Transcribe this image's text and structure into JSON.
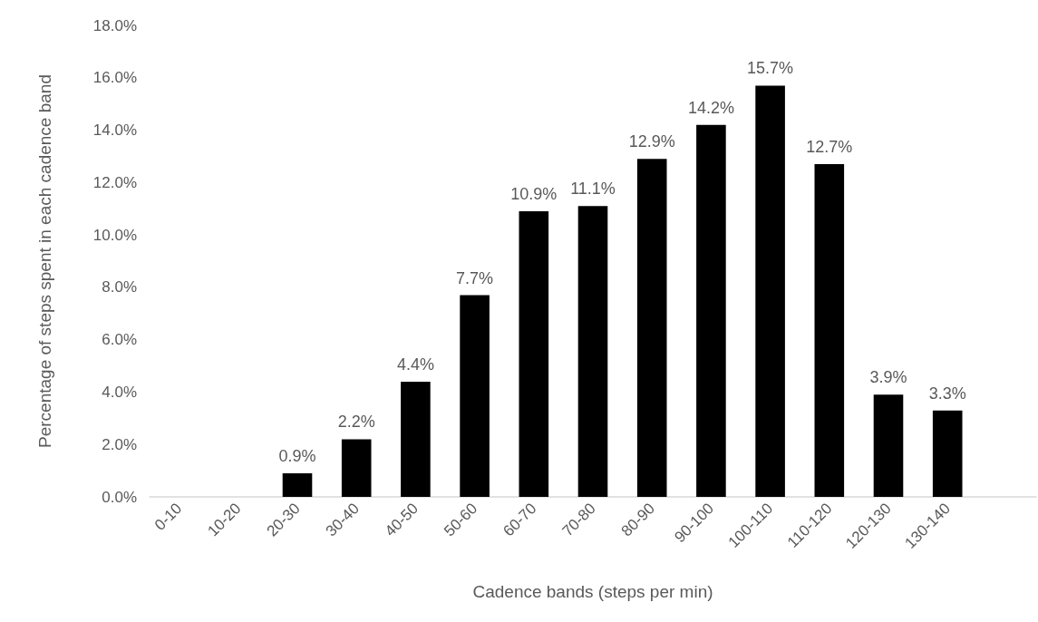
{
  "chart_data": {
    "type": "bar",
    "xlabel": "Cadence bands (steps per min)",
    "ylabel": "Percentage of steps spent in each cadence band",
    "categories": [
      "0-10",
      "10-20",
      "20-30",
      "30-40",
      "40-50",
      "50-60",
      "60-70",
      "70-80",
      "80-90",
      "90-100",
      "100-110",
      "110-120",
      "120-130",
      "130-140",
      null
    ],
    "values": [
      0,
      0,
      0.9,
      2.2,
      4.4,
      7.7,
      10.9,
      11.1,
      12.9,
      14.2,
      15.7,
      12.7,
      3.9,
      3.3,
      null
    ],
    "value_labels": [
      null,
      null,
      "0.9%",
      "2.2%",
      "4.4%",
      "7.7%",
      "10.9%",
      "11.1%",
      "12.9%",
      "14.2%",
      "15.7%",
      "12.7%",
      "3.9%",
      "3.3%",
      null
    ],
    "color": "#000000",
    "ylim": [
      0,
      18
    ],
    "yticks": [
      {
        "value": 0,
        "label": "0.0%"
      },
      {
        "value": 2,
        "label": "2.0%"
      },
      {
        "value": 4,
        "label": "4.0%"
      },
      {
        "value": 6,
        "label": "6.0%"
      },
      {
        "value": 8,
        "label": "8.0%"
      },
      {
        "value": 10,
        "label": "10.0%"
      },
      {
        "value": 12,
        "label": "12.0%"
      },
      {
        "value": 14,
        "label": "14.0%"
      },
      {
        "value": 16,
        "label": "16.0%"
      },
      {
        "value": 18,
        "label": "18.0%"
      }
    ]
  }
}
